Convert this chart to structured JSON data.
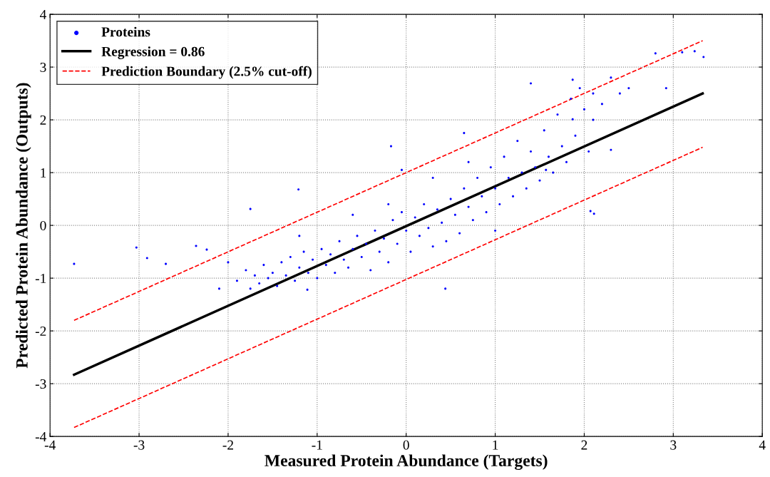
{
  "chart_data": {
    "type": "scatter",
    "xlabel": "Measured Protein Abundance (Targets)",
    "ylabel": "Predicted Protein Abundance (Outputs)",
    "xlim": [
      -4,
      4
    ],
    "ylim": [
      -4,
      4
    ],
    "xticks": [
      -4,
      -3,
      -2,
      -1,
      0,
      1,
      2,
      3,
      4
    ],
    "yticks": [
      -4,
      -3,
      -2,
      -1,
      0,
      1,
      2,
      3,
      4
    ],
    "grid": true,
    "legend": "top left",
    "series": [
      {
        "name": "Proteins",
        "color": "#0000ff",
        "marker": "circle",
        "x": [
          -3.73,
          -3.03,
          -2.91,
          -2.7,
          -2.36,
          -2.24,
          -1.75,
          -1.21,
          -0.17,
          -1.11,
          0.44,
          1.4,
          1.87,
          2.1,
          1.87,
          2.8,
          3.1,
          3.24,
          3.34,
          2.92,
          2.11,
          2.07,
          1.57,
          2.3,
          -1.9,
          -1.8,
          -1.75,
          -1.7,
          -1.65,
          -1.6,
          -1.55,
          -1.5,
          -1.45,
          -1.4,
          -1.35,
          -1.3,
          -1.25,
          -1.2,
          -1.15,
          -1.1,
          -1.05,
          -1.0,
          -0.95,
          -0.9,
          -0.85,
          -0.8,
          -0.75,
          -0.7,
          -0.65,
          -0.6,
          -0.55,
          -0.5,
          -0.45,
          -0.4,
          -0.35,
          -0.3,
          -0.25,
          -0.2,
          -0.15,
          -0.1,
          -0.05,
          0,
          0.05,
          0.1,
          0.15,
          0.2,
          0.25,
          0.3,
          0.35,
          0.4,
          0.45,
          0.5,
          0.55,
          0.6,
          0.65,
          0.7,
          0.75,
          0.8,
          0.85,
          0.9,
          0.95,
          1.0,
          1.05,
          1.1,
          1.15,
          1.2,
          1.25,
          1.3,
          1.35,
          1.4,
          1.45,
          1.5,
          1.55,
          1.6,
          1.65,
          1.7,
          1.75,
          1.8,
          1.85,
          1.9,
          1.95,
          2.0,
          2.05,
          2.1,
          2.2,
          2.3,
          2.4,
          2.5,
          -2.0,
          -2.1,
          -1.2,
          -0.6,
          -0.2,
          0.7,
          1.0,
          0.3,
          0.65,
          -0.05
        ],
        "values": [
          -0.73,
          -0.42,
          -0.62,
          -0.73,
          -0.39,
          -0.46,
          0.31,
          0.68,
          1.5,
          -1.22,
          -1.2,
          2.69,
          2.01,
          2.0,
          2.76,
          3.26,
          3.28,
          3.3,
          3.19,
          2.6,
          0.22,
          0.27,
          1.05,
          1.43,
          -1.05,
          -0.85,
          -1.2,
          -0.95,
          -1.1,
          -0.75,
          -1.0,
          -0.9,
          -1.15,
          -0.7,
          -0.95,
          -0.6,
          -1.05,
          -0.8,
          -0.5,
          -0.9,
          -0.65,
          -1.0,
          -0.45,
          -0.75,
          -0.55,
          -0.9,
          -0.3,
          -0.65,
          -0.8,
          -0.45,
          -0.2,
          -0.6,
          -0.35,
          -0.85,
          -0.1,
          -0.5,
          -0.25,
          -0.7,
          0.1,
          -0.35,
          0.25,
          -0.1,
          -0.5,
          0.15,
          -0.2,
          0.4,
          -0.05,
          -0.4,
          0.3,
          0.05,
          -0.3,
          0.5,
          0.2,
          -0.15,
          0.7,
          0.35,
          0.1,
          0.9,
          0.55,
          0.25,
          1.1,
          0.7,
          0.4,
          1.3,
          0.9,
          0.55,
          1.6,
          1.0,
          0.7,
          1.4,
          1.1,
          0.85,
          1.8,
          1.3,
          1.0,
          2.1,
          1.5,
          1.2,
          2.4,
          1.7,
          2.6,
          2.2,
          1.4,
          2.5,
          2.3,
          2.8,
          2.5,
          2.6,
          -0.7,
          -1.2,
          -0.2,
          0.2,
          0.4,
          1.2,
          -0.1,
          0.9,
          1.75,
          1.05
        ]
      },
      {
        "name": "Regression = 0.86",
        "type": "line",
        "color": "#000000",
        "line_style": "solid",
        "x": [
          -3.73,
          3.33
        ],
        "values": [
          -2.83,
          2.5
        ]
      },
      {
        "name": "Prediction Boundary (2.5% cut-off)",
        "type": "line",
        "color": "#ff0000",
        "line_style": "dashed",
        "x": [
          -3.73,
          3.33
        ],
        "values": [
          -1.8,
          3.5
        ]
      },
      {
        "type": "line",
        "color": "#ff0000",
        "line_style": "dashed",
        "x": [
          -3.73,
          3.33
        ],
        "values": [
          -3.83,
          1.48
        ]
      }
    ]
  }
}
